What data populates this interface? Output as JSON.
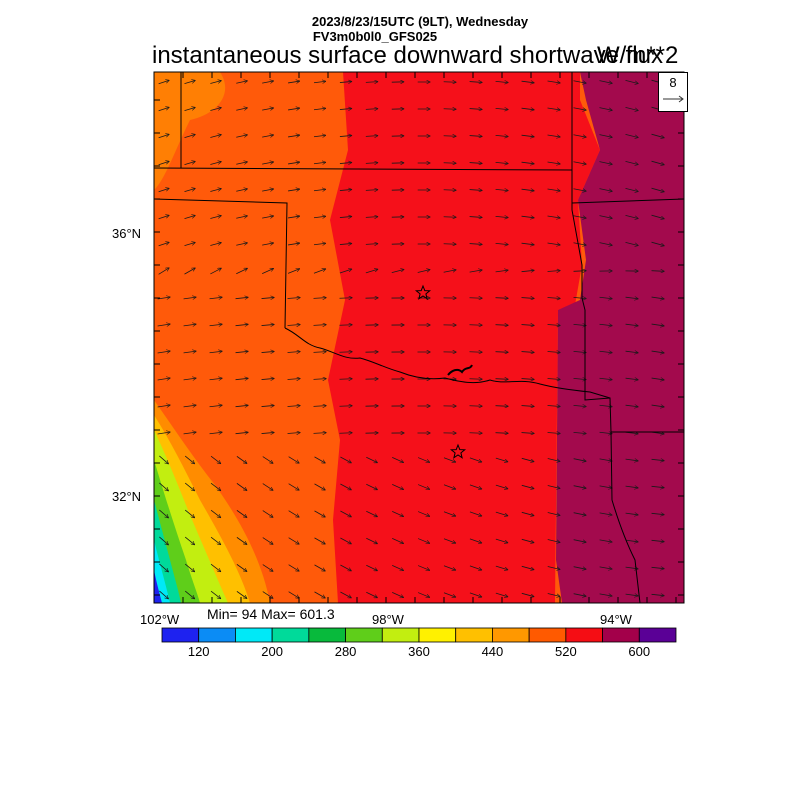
{
  "header": {
    "date_line": "2023/8/23/15UTC (9LT), Wednesday",
    "model_line": "FV3m0b0l0_GFS025",
    "title": "instantaneous surface downward shortwave flux",
    "units": "W/m**2"
  },
  "reference_vector": {
    "value": "8"
  },
  "axes": {
    "lat_labels": [
      "36°N",
      "32°N"
    ],
    "lon_labels": [
      "102°W",
      "98°W",
      "94°W"
    ]
  },
  "stats": {
    "text": "Min= 94 Max= 601.3"
  },
  "colorbar": {
    "labels": [
      "120",
      "200",
      "280",
      "360",
      "440",
      "520",
      "600"
    ],
    "colors": [
      "#1e22f0",
      "#0b8cf5",
      "#00e9f7",
      "#00da9a",
      "#08ba3c",
      "#5fce1a",
      "#c2ee10",
      "#fff100",
      "#ffc000",
      "#ff9800",
      "#ff5a00",
      "#f50d14",
      "#a3004a",
      "#5a0096"
    ]
  },
  "map_colors": {
    "west": "#ff5a0a",
    "center": "#f5101a",
    "east": "#a30a4d",
    "border": "#000000",
    "vector": "#1a1a1a"
  }
}
